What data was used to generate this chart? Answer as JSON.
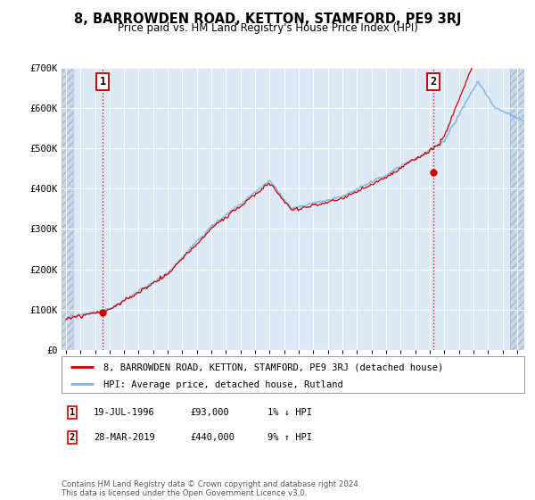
{
  "title": "8, BARROWDEN ROAD, KETTON, STAMFORD, PE9 3RJ",
  "subtitle": "Price paid vs. HM Land Registry's House Price Index (HPI)",
  "background_color": "#ffffff",
  "plot_bg_color": "#dce9f5",
  "hpi_line_color": "#7ab4e8",
  "price_line_color": "#cc0000",
  "sale1_date_x": 1996.54,
  "sale1_price": 93000,
  "sale1_label": "1",
  "sale2_date_x": 2019.23,
  "sale2_price": 440000,
  "sale2_label": "2",
  "xmin": 1993.7,
  "xmax": 2025.5,
  "ymin": 0,
  "ymax": 700000,
  "yticks": [
    0,
    100000,
    200000,
    300000,
    400000,
    500000,
    600000,
    700000
  ],
  "ytick_labels": [
    "£0",
    "£100K",
    "£200K",
    "£300K",
    "£400K",
    "£500K",
    "£600K",
    "£700K"
  ],
  "xtick_years": [
    1994,
    1995,
    1996,
    1997,
    1998,
    1999,
    2000,
    2001,
    2002,
    2003,
    2004,
    2005,
    2006,
    2007,
    2008,
    2009,
    2010,
    2011,
    2012,
    2013,
    2014,
    2015,
    2016,
    2017,
    2018,
    2019,
    2020,
    2021,
    2022,
    2023,
    2024,
    2025
  ],
  "legend_line1": "8, BARROWDEN ROAD, KETTON, STAMFORD, PE9 3RJ (detached house)",
  "legend_line2": "HPI: Average price, detached house, Rutland",
  "table_row1": [
    "1",
    "19-JUL-1996",
    "£93,000",
    "1% ↓ HPI"
  ],
  "table_row2": [
    "2",
    "28-MAR-2019",
    "£440,000",
    "9% ↑ HPI"
  ],
  "footnote": "Contains HM Land Registry data © Crown copyright and database right 2024.\nThis data is licensed under the Open Government Licence v3.0.",
  "hatch_left_xmax": 1994.5,
  "hatch_right_xmin": 2024.5,
  "grid_color": "#c8d8ea",
  "vgrid_color": "#c8d8ea"
}
